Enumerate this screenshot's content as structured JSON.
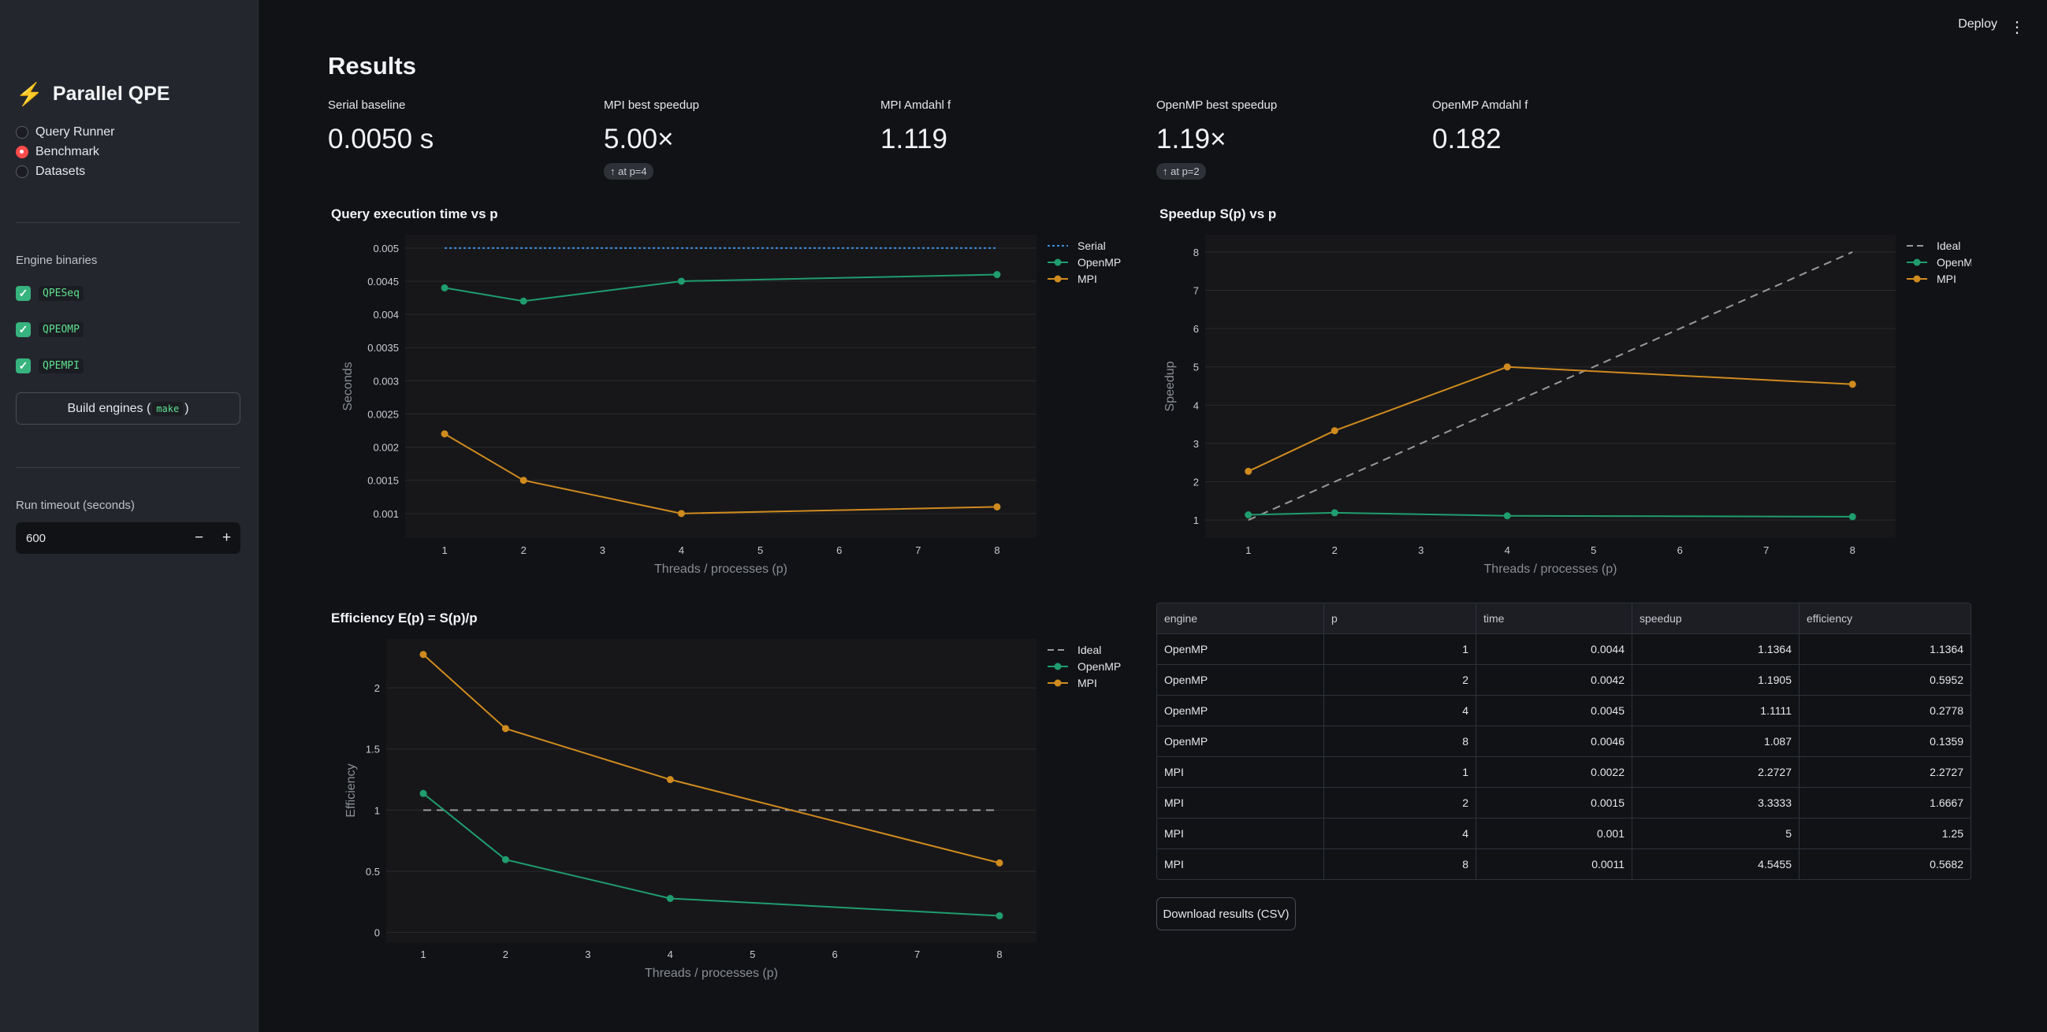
{
  "sidebar": {
    "app_title": "Parallel QPE",
    "nav": [
      {
        "label": "Query Runner",
        "selected": false
      },
      {
        "label": "Benchmark",
        "selected": true
      },
      {
        "label": "Datasets",
        "selected": false
      }
    ],
    "binaries_label": "Engine binaries",
    "binaries": [
      "QPESeq",
      "QPEOMP",
      "QPEMPI"
    ],
    "build_label_pre": "Build engines (",
    "build_label_code": "make",
    "build_label_post": ")",
    "timeout_label": "Run timeout (seconds)",
    "timeout_value": "600",
    "minus": "−",
    "plus": "+"
  },
  "header": {
    "deploy": "Deploy",
    "menu": "⋮"
  },
  "main": {
    "title": "Results",
    "metrics": [
      {
        "label": "Serial baseline",
        "value": "0.0050 s",
        "delta": ""
      },
      {
        "label": "MPI best speedup",
        "value": "5.00×",
        "delta": "↑ at p=4"
      },
      {
        "label": "MPI Amdahl f",
        "value": "1.119",
        "delta": ""
      },
      {
        "label": "OpenMP best speedup",
        "value": "1.19×",
        "delta": "↑ at p=2"
      },
      {
        "label": "OpenMP Amdahl f",
        "value": "0.182",
        "delta": ""
      }
    ],
    "download_label": "Download results (CSV)"
  },
  "colors": {
    "openmp": "#1f9d6e",
    "mpi": "#d08b1e",
    "serial": "#3b8fe0",
    "ideal": "#9a9a9a",
    "accent": "#ff4b4b"
  },
  "table": {
    "columns": [
      "engine",
      "p",
      "time",
      "speedup",
      "efficiency"
    ],
    "rows": [
      [
        "OpenMP",
        "1",
        "0.0044",
        "1.1364",
        "1.1364"
      ],
      [
        "OpenMP",
        "2",
        "0.0042",
        "1.1905",
        "0.5952"
      ],
      [
        "OpenMP",
        "4",
        "0.0045",
        "1.1111",
        "0.2778"
      ],
      [
        "OpenMP",
        "8",
        "0.0046",
        "1.087",
        "0.1359"
      ],
      [
        "MPI",
        "1",
        "0.0022",
        "2.2727",
        "2.2727"
      ],
      [
        "MPI",
        "2",
        "0.0015",
        "3.3333",
        "1.6667"
      ],
      [
        "MPI",
        "4",
        "0.001",
        "5",
        "1.25"
      ],
      [
        "MPI",
        "8",
        "0.0011",
        "4.5455",
        "0.5682"
      ]
    ]
  },
  "chart_data": [
    {
      "type": "line",
      "title": "Query execution time vs p",
      "xlabel": "Threads / processes (p)",
      "ylabel": "Seconds",
      "xlim": [
        0.5,
        8.5
      ],
      "ylim": [
        0.00063,
        0.0052
      ],
      "xticks": [
        "1",
        "2",
        "3",
        "4",
        "5",
        "6",
        "7",
        "8"
      ],
      "yticks": [
        "0.001",
        "0.0015",
        "0.002",
        "0.0025",
        "0.003",
        "0.0035",
        "0.004",
        "0.0045",
        "0.005"
      ],
      "grid": true,
      "legend": "right",
      "series": [
        {
          "name": "Serial",
          "color": "#3b8fe0",
          "dash": "dot",
          "markers": false,
          "x": [
            1,
            8
          ],
          "y": [
            0.005,
            0.005
          ]
        },
        {
          "name": "OpenMP",
          "color": "#1f9d6e",
          "markers": true,
          "x": [
            1,
            2,
            4,
            8
          ],
          "y": [
            0.0044,
            0.0042,
            0.0045,
            0.0046
          ]
        },
        {
          "name": "MPI",
          "color": "#d08b1e",
          "markers": true,
          "x": [
            1,
            2,
            4,
            8
          ],
          "y": [
            0.0022,
            0.0015,
            0.001,
            0.0011
          ]
        }
      ]
    },
    {
      "type": "line",
      "title": "Speedup S(p) vs p",
      "xlabel": "Threads / processes (p)",
      "ylabel": "Speedup",
      "xlim": [
        0.5,
        8.5
      ],
      "ylim": [
        0.53,
        8.45
      ],
      "xticks": [
        "1",
        "2",
        "3",
        "4",
        "5",
        "6",
        "7",
        "8"
      ],
      "yticks": [
        "1",
        "2",
        "3",
        "4",
        "5",
        "6",
        "7",
        "8"
      ],
      "grid": true,
      "legend": "right",
      "series": [
        {
          "name": "Ideal",
          "color": "#9a9a9a",
          "dash": "dash",
          "markers": false,
          "x": [
            1,
            8
          ],
          "y": [
            1,
            8
          ]
        },
        {
          "name": "OpenMP",
          "color": "#1f9d6e",
          "markers": true,
          "x": [
            1,
            2,
            4,
            8
          ],
          "y": [
            1.1364,
            1.1905,
            1.1111,
            1.087
          ]
        },
        {
          "name": "MPI",
          "color": "#d08b1e",
          "markers": true,
          "x": [
            1,
            2,
            4,
            8
          ],
          "y": [
            2.2727,
            3.3333,
            5,
            4.5455
          ]
        }
      ]
    },
    {
      "type": "line",
      "title": "Efficiency E(p) = S(p)/p",
      "xlabel": "Threads / processes (p)",
      "ylabel": "Efficiency",
      "xlim": [
        0.55,
        8.45
      ],
      "ylim": [
        -0.08,
        2.4
      ],
      "xticks": [
        "1",
        "2",
        "3",
        "4",
        "5",
        "6",
        "7",
        "8"
      ],
      "yticks": [
        "0",
        "0.5",
        "1",
        "1.5",
        "2"
      ],
      "grid": true,
      "legend": "right",
      "series": [
        {
          "name": "Ideal",
          "color": "#9a9a9a",
          "dash": "dash",
          "markers": false,
          "x": [
            1,
            8
          ],
          "y": [
            1,
            1
          ]
        },
        {
          "name": "OpenMP",
          "color": "#1f9d6e",
          "markers": true,
          "x": [
            1,
            2,
            4,
            8
          ],
          "y": [
            1.1364,
            0.5952,
            0.2778,
            0.1359
          ]
        },
        {
          "name": "MPI",
          "color": "#d08b1e",
          "markers": true,
          "x": [
            1,
            2,
            4,
            8
          ],
          "y": [
            2.2727,
            1.6667,
            1.25,
            0.5682
          ]
        }
      ]
    }
  ]
}
